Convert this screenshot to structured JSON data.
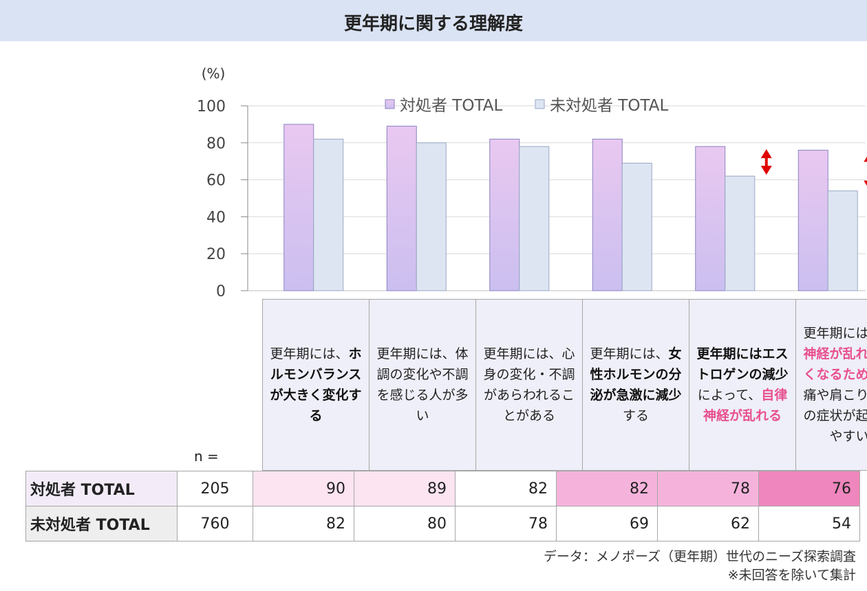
{
  "title": "更年期に関する理解度",
  "unit_label": "(%)",
  "chart_data": {
    "type": "bar",
    "ylim": [
      0,
      100
    ],
    "yticks": [
      "0",
      "20",
      "40",
      "60",
      "80",
      "100"
    ],
    "grid": true,
    "legend_position": "top",
    "categories": [
      "更年期には、ホルモンバランスが大きく変化する",
      "更年期には、体調の変化や不調を感じる人が多い",
      "更年期には、心身の変化・不調があらわれることがある",
      "更年期には、女性ホルモンの分泌が急激に減少する",
      "更年期にはエストロゲンの減少によって、自律神経が乱れる",
      "更年期には自律神経が乱れやすくなるため、頭痛や肩こりなどの症状が起こりやすい"
    ],
    "series": [
      {
        "name": "対処者 TOTAL",
        "values": [
          90,
          89,
          82,
          82,
          78,
          76
        ],
        "color": "#e2c4f0"
      },
      {
        "name": "未対処者 TOTAL",
        "values": [
          82,
          80,
          78,
          69,
          62,
          54
        ],
        "color": "#dde5f2"
      }
    ],
    "highlight_arrows_categories": [
      4,
      5
    ],
    "arrow_color": "#e00000"
  },
  "n_label": "n =",
  "rows": [
    {
      "label": "対処者 TOTAL",
      "n": "205",
      "values": [
        "90",
        "89",
        "82",
        "82",
        "78",
        "76"
      ],
      "cell_colors": [
        "#fce4f1",
        "#fce4f1",
        "#ffffff",
        "#f5b3dc",
        "#f5b3dc",
        "#ef86bd"
      ]
    },
    {
      "label": "未対処者 TOTAL",
      "n": "760",
      "values": [
        "82",
        "80",
        "78",
        "69",
        "62",
        "54"
      ]
    }
  ],
  "label_cell_colors": [
    "#efeff9",
    "#efeff9",
    "#efeff9",
    "#efeff9",
    "#efeff9",
    "#efeff9"
  ],
  "category_labels": [
    {
      "p1": "更年期には、",
      "b1": "ホルモンバランスが大きく変化する",
      "p2": "",
      "k1": "",
      "p3": "",
      "k2": "",
      "p4": ""
    },
    {
      "p1": "更年期には、体調の変化や不調を感じる人が多い",
      "b1": "",
      "p2": "",
      "k1": "",
      "p3": "",
      "k2": "",
      "p4": ""
    },
    {
      "p1": "更年期には、心身の変化・不調があらわれることがある",
      "b1": "",
      "p2": "",
      "k1": "",
      "p3": "",
      "k2": "",
      "p4": ""
    },
    {
      "p1": "更年期には、",
      "b1": "女性ホルモンの分泌が急激に減少",
      "p2": "する",
      "k1": "",
      "p3": "",
      "k2": "",
      "p4": ""
    },
    {
      "p1": "",
      "b1": "更年期にはエストロゲンの減少",
      "p2": "によって、",
      "k1": "自律神経が乱れる",
      "p3": "",
      "k2": "",
      "p4": ""
    },
    {
      "p1": "更年期には",
      "b1": "",
      "p2": "",
      "k1": "自律神経が乱れやすくなるため",
      "p3": "、頭痛や肩こりなどの症状が起こりやすい",
      "k2": "",
      "p4": ""
    }
  ],
  "notes": [
    "データ：メノポーズ（更年期）世代のニーズ探索調査",
    "※未回答を除いて集計"
  ]
}
